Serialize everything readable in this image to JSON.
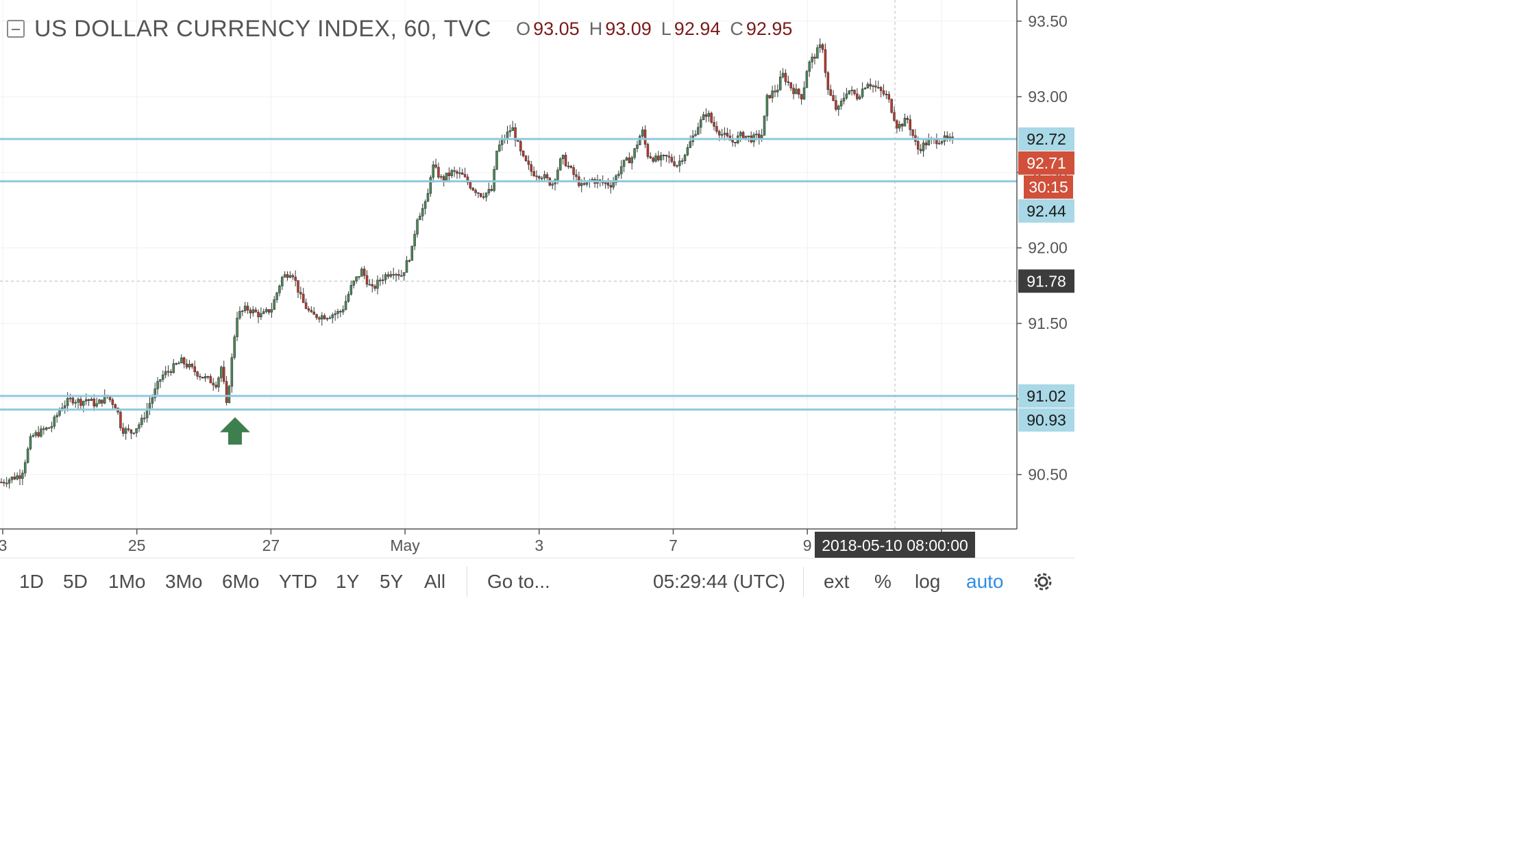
{
  "legend": {
    "title": "US DOLLAR CURRENCY INDEX, 60, TVC",
    "open_key": "O",
    "open": "93.05",
    "high_key": "H",
    "high": "93.09",
    "low_key": "L",
    "low": "92.94",
    "close_key": "C",
    "close": "92.95"
  },
  "colors": {
    "up": "#4a8a5a",
    "down": "#c0392b",
    "hline": "#8fc9dc",
    "price_badge": "#d0503a",
    "label_badge": "#a9d8e6",
    "crosshair_badge": "#3c3c3c",
    "arrow": "#3e7f4f"
  },
  "chart_data": {
    "type": "candlestick",
    "title": "US DOLLAR CURRENCY INDEX, 60, TVC",
    "ylim": [
      90.14,
      93.64
    ],
    "y_ticks": [
      "90.50",
      "91.00",
      "91.50",
      "92.00",
      "92.50",
      "93.00",
      "93.50"
    ],
    "x_ticks": [
      "3",
      "25",
      "27",
      "May",
      "3",
      "7",
      "9",
      "14"
    ],
    "horizontal_lines": [
      92.72,
      92.44,
      91.02,
      90.93
    ],
    "price_labels": [
      {
        "text": "92.72",
        "value": 92.72,
        "kind": "line"
      },
      {
        "text": "92.71",
        "value": 92.71,
        "kind": "last"
      },
      {
        "text": "30:15",
        "value": 92.55,
        "kind": "countdown"
      },
      {
        "text": "92.44",
        "value": 92.44,
        "kind": "line"
      },
      {
        "text": "91.78",
        "value": 91.78,
        "kind": "crosshair"
      },
      {
        "text": "91.02",
        "value": 91.02,
        "kind": "line"
      },
      {
        "text": "90.93",
        "value": 90.93,
        "kind": "line"
      }
    ],
    "crosshair": {
      "value": 91.78,
      "time_label": "2018-05-10 08:00:00"
    },
    "arrow_marker": {
      "value": 90.78,
      "direction": "up"
    },
    "close_path": [
      [
        0,
        90.45
      ],
      [
        0.02,
        90.5
      ],
      [
        0.03,
        90.75
      ],
      [
        0.05,
        90.82
      ],
      [
        0.06,
        90.95
      ],
      [
        0.07,
        91.0
      ],
      [
        0.08,
        90.98
      ],
      [
        0.085,
        91.0
      ],
      [
        0.095,
        90.96
      ],
      [
        0.105,
        91.02
      ],
      [
        0.115,
        90.95
      ],
      [
        0.12,
        90.8
      ],
      [
        0.13,
        90.78
      ],
      [
        0.14,
        90.85
      ],
      [
        0.15,
        91.0
      ],
      [
        0.16,
        91.15
      ],
      [
        0.17,
        91.2
      ],
      [
        0.18,
        91.25
      ],
      [
        0.19,
        91.2
      ],
      [
        0.2,
        91.15
      ],
      [
        0.215,
        91.1
      ],
      [
        0.22,
        91.22
      ],
      [
        0.225,
        90.95
      ],
      [
        0.235,
        91.55
      ],
      [
        0.245,
        91.6
      ],
      [
        0.26,
        91.55
      ],
      [
        0.27,
        91.6
      ],
      [
        0.28,
        91.8
      ],
      [
        0.29,
        91.85
      ],
      [
        0.3,
        91.65
      ],
      [
        0.31,
        91.55
      ],
      [
        0.325,
        91.55
      ],
      [
        0.34,
        91.58
      ],
      [
        0.35,
        91.75
      ],
      [
        0.36,
        91.85
      ],
      [
        0.37,
        91.72
      ],
      [
        0.38,
        91.8
      ],
      [
        0.39,
        91.85
      ],
      [
        0.4,
        91.82
      ],
      [
        0.41,
        91.98
      ],
      [
        0.415,
        92.2
      ],
      [
        0.425,
        92.3
      ],
      [
        0.43,
        92.55
      ],
      [
        0.44,
        92.45
      ],
      [
        0.45,
        92.5
      ],
      [
        0.46,
        92.48
      ],
      [
        0.47,
        92.4
      ],
      [
        0.48,
        92.35
      ],
      [
        0.49,
        92.38
      ],
      [
        0.495,
        92.65
      ],
      [
        0.505,
        92.75
      ],
      [
        0.51,
        92.8
      ],
      [
        0.52,
        92.6
      ],
      [
        0.53,
        92.5
      ],
      [
        0.54,
        92.48
      ],
      [
        0.55,
        92.42
      ],
      [
        0.56,
        92.6
      ],
      [
        0.57,
        92.5
      ],
      [
        0.58,
        92.4
      ],
      [
        0.59,
        92.45
      ],
      [
        0.6,
        92.43
      ],
      [
        0.61,
        92.42
      ],
      [
        0.62,
        92.55
      ],
      [
        0.63,
        92.6
      ],
      [
        0.64,
        92.78
      ],
      [
        0.645,
        92.62
      ],
      [
        0.655,
        92.58
      ],
      [
        0.665,
        92.6
      ],
      [
        0.675,
        92.55
      ],
      [
        0.685,
        92.65
      ],
      [
        0.695,
        92.8
      ],
      [
        0.705,
        92.9
      ],
      [
        0.71,
        92.82
      ],
      [
        0.72,
        92.75
      ],
      [
        0.73,
        92.7
      ],
      [
        0.74,
        92.75
      ],
      [
        0.75,
        92.72
      ],
      [
        0.76,
        92.75
      ],
      [
        0.765,
        93.0
      ],
      [
        0.775,
        93.05
      ],
      [
        0.78,
        93.15
      ],
      [
        0.79,
        93.05
      ],
      [
        0.8,
        93.0
      ],
      [
        0.805,
        93.2
      ],
      [
        0.81,
        93.25
      ],
      [
        0.82,
        93.35
      ],
      [
        0.825,
        93.05
      ],
      [
        0.835,
        92.9
      ],
      [
        0.845,
        93.05
      ],
      [
        0.855,
        93.0
      ],
      [
        0.865,
        93.1
      ],
      [
        0.875,
        93.05
      ],
      [
        0.885,
        93.0
      ],
      [
        0.895,
        92.8
      ],
      [
        0.905,
        92.85
      ],
      [
        0.915,
        92.65
      ],
      [
        0.925,
        92.7
      ],
      [
        0.94,
        92.72
      ],
      [
        0.95,
        92.71
      ]
    ]
  },
  "toolbar": {
    "ranges": [
      "1D",
      "5D",
      "1Mo",
      "3Mo",
      "6Mo",
      "YTD",
      "1Y",
      "5Y",
      "All"
    ],
    "goto": "Go to...",
    "clock": "05:29:44 (UTC)",
    "ext": "ext",
    "percent": "%",
    "log": "log",
    "auto": "auto"
  }
}
